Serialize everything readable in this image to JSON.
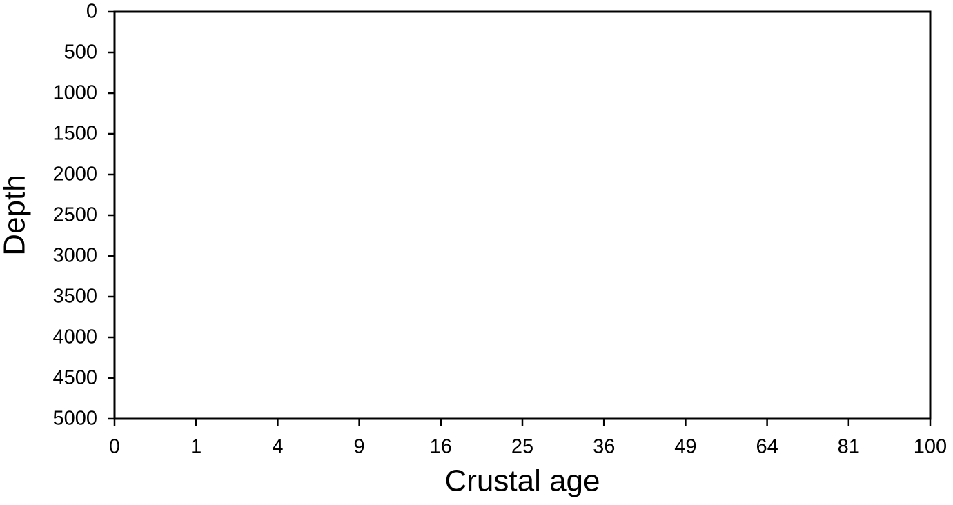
{
  "chart_data": {
    "type": "line",
    "xlabel": "Crustal age",
    "ylabel": "Depth",
    "xlim": [
      0,
      100
    ],
    "xticks": [
      0,
      1,
      4,
      9,
      16,
      25,
      36,
      49,
      64,
      81,
      100
    ],
    "xscale": "sqrt",
    "ylim": [
      0,
      5000
    ],
    "yticks": [
      0,
      500,
      1000,
      1500,
      2000,
      2500,
      3000,
      3500,
      4000,
      4500,
      5000
    ],
    "y_reversed": true,
    "grid": false,
    "frame_color": "#000000"
  }
}
